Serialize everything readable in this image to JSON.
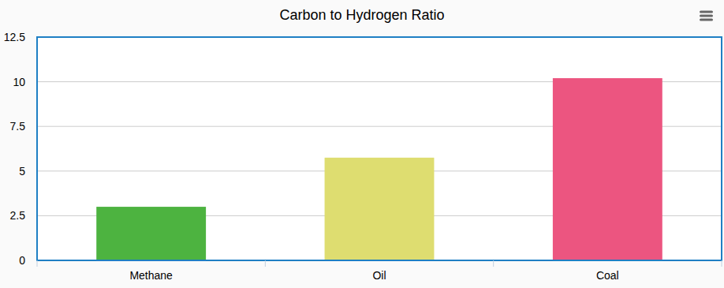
{
  "chart_data": {
    "type": "bar",
    "title": "Carbon to Hydrogen Ratio",
    "categories": [
      "Methane",
      "Oil",
      "Coal"
    ],
    "values": [
      3.0,
      5.75,
      10.2
    ],
    "colors": [
      "#4db340",
      "#dedd70",
      "#ec5580"
    ],
    "ylim": [
      0,
      12.5
    ],
    "yticks": [
      0,
      2.5,
      5,
      7.5,
      10,
      12.5
    ],
    "grid": true
  }
}
